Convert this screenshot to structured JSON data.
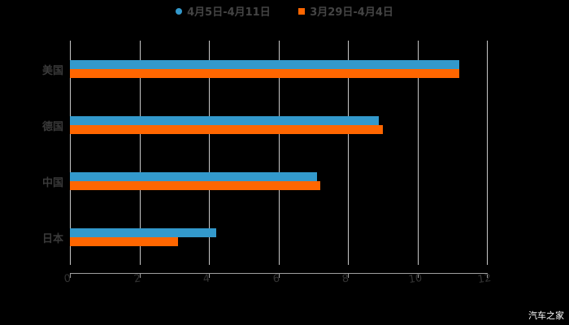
{
  "chart_data": {
    "type": "bar",
    "orientation": "horizontal",
    "title": "",
    "categories": [
      "美国",
      "德国",
      "中国",
      "日本"
    ],
    "series": [
      {
        "name": "4月5日-4月11日",
        "color": "#3399cc",
        "values": [
          11.2,
          8.9,
          7.1,
          4.2
        ]
      },
      {
        "name": "3月29日-4月4日",
        "color": "#ff6600",
        "values": [
          11.2,
          9.0,
          7.2,
          3.1
        ]
      }
    ],
    "xlabel": "",
    "ylabel": "",
    "xlim": [
      0,
      12
    ],
    "xticks": [
      "0",
      "2",
      "4",
      "6",
      "8",
      "10",
      "12"
    ],
    "grid": true,
    "legend_position": "top"
  },
  "legend": {
    "items": [
      {
        "label": "4月5日-4月11日",
        "color": "#3399cc",
        "shape": "circle"
      },
      {
        "label": "3月29日-4月4日",
        "color": "#ff6600",
        "shape": "square"
      }
    ]
  },
  "categories": [
    "美国",
    "德国",
    "中国",
    "日本"
  ],
  "xticks": [
    "0",
    "2",
    "4",
    "6",
    "8",
    "10",
    "12"
  ],
  "watermark": "汽车之家"
}
